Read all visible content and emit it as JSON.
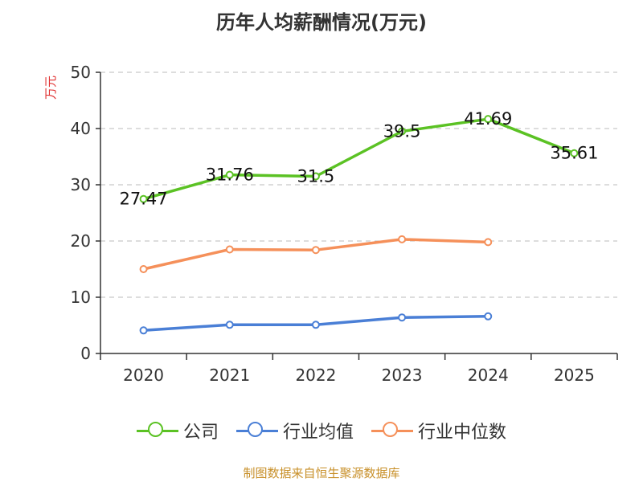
{
  "chart_data": {
    "type": "line",
    "title": "历年人均薪酬情况(万元)",
    "ylabel": "万元",
    "xlabel": "",
    "categories": [
      "2020",
      "2021",
      "2022",
      "2023",
      "2024",
      "2025"
    ],
    "ylim": [
      0,
      50
    ],
    "yticks": [
      0,
      10,
      20,
      30,
      40,
      50
    ],
    "grid": true,
    "legend_position": "bottom",
    "series": [
      {
        "name": "公司",
        "color": "#5bc224",
        "values": [
          27.47,
          31.76,
          31.5,
          39.5,
          41.69,
          35.61
        ],
        "labels": [
          "27.47",
          "31.76",
          "31.5",
          "39.5",
          "41.69",
          "35.61"
        ]
      },
      {
        "name": "行业均值",
        "color": "#4a7fd6",
        "values": [
          4.1,
          5.1,
          5.1,
          6.4,
          6.6,
          null
        ]
      },
      {
        "name": "行业中位数",
        "color": "#f5905a",
        "values": [
          15.0,
          18.5,
          18.4,
          20.3,
          19.8,
          null
        ]
      }
    ],
    "source": "制图数据来自恒生聚源数据库"
  },
  "colors": {
    "ylabel": "#e03030",
    "source": "#c8902a",
    "axis": "#333333",
    "grid": "#bbbbbb"
  }
}
